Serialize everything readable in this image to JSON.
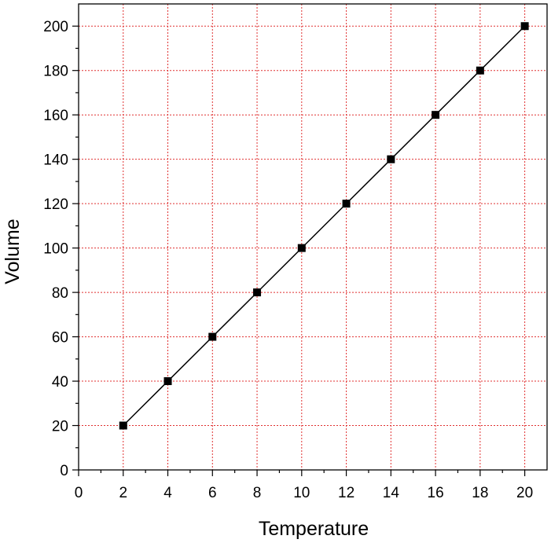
{
  "chart_data": {
    "type": "line",
    "title": "",
    "xlabel": "Temperature",
    "ylabel": "Volume",
    "xlim": [
      0,
      21
    ],
    "ylim": [
      0,
      210
    ],
    "xticks": [
      0,
      2,
      4,
      6,
      8,
      10,
      12,
      14,
      16,
      18,
      20
    ],
    "yticks": [
      0,
      20,
      40,
      60,
      80,
      100,
      120,
      140,
      160,
      180,
      200
    ],
    "grid": true,
    "grid_color": "#e03030",
    "line_color": "#000000",
    "marker": "square",
    "legend": "none",
    "series": [
      {
        "x": [
          2,
          4,
          6,
          8,
          10,
          12,
          14,
          16,
          18,
          20
        ],
        "y": [
          20,
          40,
          60,
          80,
          100,
          120,
          140,
          160,
          180,
          200
        ]
      }
    ]
  }
}
